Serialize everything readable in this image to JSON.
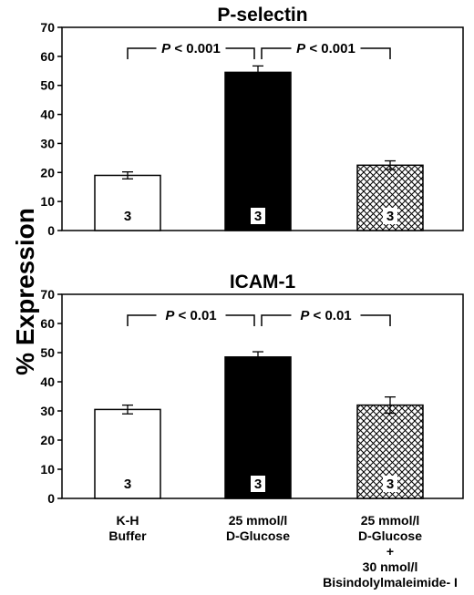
{
  "figure": {
    "ylabel": "% Expression",
    "categories": [
      [
        "K-H",
        "Buffer"
      ],
      [
        "25 mmol/l",
        "D-Glucose"
      ],
      [
        "25 mmol/l",
        "D-Glucose",
        "+",
        "30 nmol/l",
        "Bisindolylmaleimide- I"
      ]
    ],
    "bar_styles": [
      "open",
      "solid",
      "crosshatch"
    ],
    "colors": {
      "solid": "#000000",
      "open": "#ffffff",
      "line": "#000000"
    }
  },
  "chart_data": [
    {
      "type": "bar",
      "title": "P-selectin",
      "ylim": [
        0,
        70
      ],
      "yticks": [
        0,
        10,
        20,
        30,
        40,
        50,
        60,
        70
      ],
      "values": [
        19,
        54.5,
        22.5
      ],
      "errors": [
        1.2,
        2.2,
        1.5
      ],
      "n_labels": [
        "3",
        "3",
        "3"
      ],
      "comparisons": [
        {
          "from": 0,
          "to": 1,
          "label": "P < 0.001"
        },
        {
          "from": 1,
          "to": 2,
          "label": "P < 0.001"
        }
      ]
    },
    {
      "type": "bar",
      "title": "ICAM-1",
      "ylim": [
        0,
        70
      ],
      "yticks": [
        0,
        10,
        20,
        30,
        40,
        50,
        60,
        70
      ],
      "values": [
        30.5,
        48.5,
        32
      ],
      "errors": [
        1.5,
        1.8,
        2.8
      ],
      "n_labels": [
        "3",
        "3",
        "3"
      ],
      "comparisons": [
        {
          "from": 0,
          "to": 1,
          "label": "P < 0.01"
        },
        {
          "from": 1,
          "to": 2,
          "label": "P < 0.01"
        }
      ]
    }
  ]
}
